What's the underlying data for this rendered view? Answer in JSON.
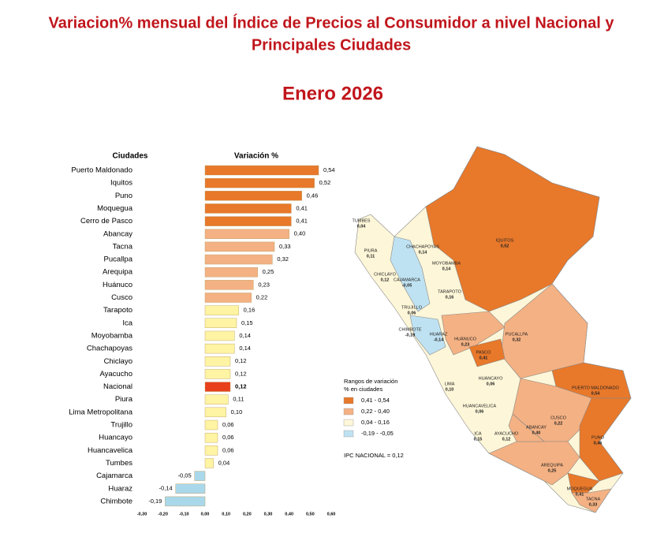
{
  "header": {
    "title_line1": "Variacion% mensual del Índice de Precios al Consumidor a nivel Nacional y",
    "title_line2": "Principales Ciudades",
    "subtitle": "Enero 2026"
  },
  "chart_data": {
    "type": "bar",
    "orientation": "horizontal",
    "category_header": "Ciudades",
    "value_header": "Variación %",
    "categories": [
      "Puerto Maldonado",
      "Iquitos",
      "Puno",
      "Moquegua",
      "Cerro de Pasco",
      "Abancay",
      "Tacna",
      "Pucallpa",
      "Arequipa",
      "Huánuco",
      "Cusco",
      "Tarapoto",
      "Ica",
      "Moyobamba",
      "Chachapoyas",
      "Chiclayo",
      "Ayacucho",
      "Nacional",
      "Piura",
      "Lima Metropolitana",
      "Trujillo",
      "Huancayo",
      "Huancavelica",
      "Tumbes",
      "Cajamarca",
      "Huaraz",
      "Chimbote"
    ],
    "values": [
      0.54,
      0.52,
      0.46,
      0.41,
      0.41,
      0.4,
      0.33,
      0.32,
      0.25,
      0.23,
      0.22,
      0.16,
      0.15,
      0.14,
      0.14,
      0.12,
      0.12,
      0.12,
      0.11,
      0.1,
      0.06,
      0.06,
      0.06,
      0.04,
      -0.05,
      -0.14,
      -0.19
    ],
    "value_labels": [
      "0,54",
      "0,52",
      "0,46",
      "0,41",
      "0,41",
      "0,40",
      "0,33",
      "0,32",
      "0,25",
      "0,23",
      "0,22",
      "0,16",
      "0,15",
      "0,14",
      "0,14",
      "0,12",
      "0,12",
      "0,12",
      "0,11",
      "0,10",
      "0,06",
      "0,06",
      "0,06",
      "0,04",
      "-0,05",
      "-0,14",
      "-0,19"
    ],
    "colors": [
      "#e8782a",
      "#e8782a",
      "#e8782a",
      "#e8782a",
      "#e8782a",
      "#f4b183",
      "#f4b183",
      "#f4b183",
      "#f4b183",
      "#f4b183",
      "#f4b183",
      "#fff4a3",
      "#fff4a3",
      "#fff4a3",
      "#fff4a3",
      "#fff4a3",
      "#fff4a3",
      "#e8401c",
      "#fff4a3",
      "#fff4a3",
      "#fff4a3",
      "#fff4a3",
      "#fff4a3",
      "#fff4a3",
      "#a9d8ea",
      "#a9d8ea",
      "#a9d8ea"
    ],
    "xlim": [
      -0.3,
      0.6
    ],
    "xticks": [
      {
        "value": -0.3,
        "label": "-0,30"
      },
      {
        "value": -0.2,
        "label": "-0,20"
      },
      {
        "value": -0.1,
        "label": "-0,10"
      },
      {
        "value": 0,
        "label": "0,00"
      },
      {
        "value": 0.1,
        "label": "0,10"
      },
      {
        "value": 0.2,
        "label": "0,20"
      },
      {
        "value": 0.3,
        "label": "0,30"
      },
      {
        "value": 0.4,
        "label": "0,40"
      },
      {
        "value": 0.5,
        "label": "0,50"
      },
      {
        "value": 0.6,
        "label": "0,60"
      }
    ]
  },
  "map": {
    "regions": [
      {
        "name": "TUMBES",
        "label": "0,04"
      },
      {
        "name": "PIURA",
        "label": "0,11"
      },
      {
        "name": "CHICLAYO",
        "label": "0,12"
      },
      {
        "name": "CAJAMARCA",
        "label": "-0,05"
      },
      {
        "name": "CHACHAPOYAS",
        "label": "0,14"
      },
      {
        "name": "MOYOBAMBA",
        "label": "0,14"
      },
      {
        "name": "TARAPOTO",
        "label": "0,16"
      },
      {
        "name": "IQUITOS",
        "label": "0,52"
      },
      {
        "name": "TRUJILLO",
        "label": "0,06"
      },
      {
        "name": "HUARAZ",
        "label": "-0,14"
      },
      {
        "name": "CHIMBOTE",
        "label": "-0,19"
      },
      {
        "name": "HUÁNUCO",
        "label": "0,23"
      },
      {
        "name": "PUCALLPA",
        "label": "0,32"
      },
      {
        "name": "PASCO",
        "label": "0,41"
      },
      {
        "name": "LIMA",
        "label": "0,10"
      },
      {
        "name": "HUANCAYO",
        "label": "0,06"
      },
      {
        "name": "HUANCAVELICA",
        "label": "0,06"
      },
      {
        "name": "ICA",
        "label": "0,15"
      },
      {
        "name": "AYACUCHO",
        "label": "0,12"
      },
      {
        "name": "ABANCAY",
        "label": "0,40"
      },
      {
        "name": "CUSCO",
        "label": "0,22"
      },
      {
        "name": "PUERTO MALDONADO",
        "label": "0,54"
      },
      {
        "name": "PUNO",
        "label": "0,46"
      },
      {
        "name": "AREQUIPA",
        "label": "0,25"
      },
      {
        "name": "MOQUEGUA",
        "label": "0,41"
      },
      {
        "name": "TACNA",
        "label": "0,33"
      }
    ],
    "legend_title_line1": "Rangos de variación",
    "legend_title_line2": "% en ciudades",
    "legend": [
      {
        "label": "0,41 - 0,54",
        "color": "#e8782a"
      },
      {
        "label": "0,22 - 0,40",
        "color": "#f4b183"
      },
      {
        "label": "0,04 - 0,16",
        "color": "#fdf6d8"
      },
      {
        "label": "-0,19 - -0,05",
        "color": "#bfe2f2"
      }
    ],
    "national": "IPC NACIONAL = 0,12"
  }
}
